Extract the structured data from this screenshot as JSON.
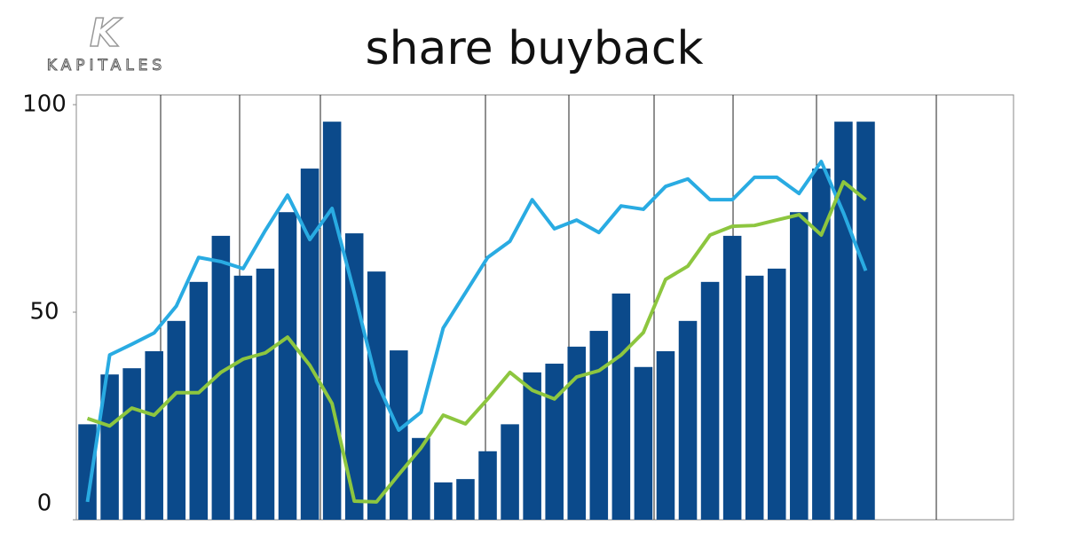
{
  "brand": {
    "letter": "K",
    "name": "KAPITALES"
  },
  "chart_data": {
    "type": "bar",
    "title": "share buyback",
    "categories": [
      null,
      null,
      null,
      null,
      null,
      null,
      null,
      null,
      null,
      null,
      null,
      null,
      null,
      null,
      null,
      null,
      null,
      null,
      null,
      null,
      null,
      null,
      null,
      null,
      null,
      null,
      null,
      null,
      null,
      null,
      null,
      null,
      null,
      null,
      null,
      null
    ],
    "series": [
      {
        "kind": "bar",
        "color": "#0b4a8b",
        "values": [
          23,
          35,
          36.5,
          40.6,
          47.9,
          57.3,
          68.4,
          58.8,
          60.5,
          74.1,
          84.6,
          95.9,
          69,
          59.8,
          40.8,
          19.7,
          9,
          9.8,
          16.5,
          23,
          35.5,
          37.6,
          41.7,
          45.5,
          54.5,
          36.8,
          40.6,
          47.9,
          57.3,
          68.4,
          58.8,
          60.5,
          74.1,
          84.6,
          95.9,
          95.9
        ]
      },
      {
        "kind": "line",
        "color": "#29abe2",
        "values": [
          4.3,
          39.7,
          42.3,
          45,
          51.5,
          63.2,
          62.2,
          60.5,
          69.7,
          78.2,
          67.5,
          75,
          54.7,
          33.3,
          21.6,
          25.9,
          46.2,
          54.7,
          63.2,
          67.1,
          77.1,
          70.1,
          72.2,
          69.2,
          75.6,
          74.8,
          80.3,
          82.1,
          77.1,
          77.1,
          82.5,
          82.5,
          78.6,
          86.3,
          73.9,
          60
        ]
      },
      {
        "kind": "line",
        "color": "#8dc63f",
        "values": [
          24.4,
          22.6,
          26.9,
          25.2,
          30.6,
          30.6,
          35.5,
          38.7,
          40.2,
          44,
          37.2,
          28,
          4.5,
          4.3,
          10.9,
          17.3,
          25.2,
          23.1,
          29.1,
          35.5,
          31.2,
          29.1,
          34.4,
          35.9,
          39.7,
          45.1,
          57.9,
          61.1,
          68.6,
          70.7,
          70.9,
          72.2,
          73.5,
          68.6,
          81.4,
          77.1
        ]
      }
    ],
    "ylim": [
      0,
      100
    ],
    "yticks": [
      0,
      50,
      100
    ]
  }
}
